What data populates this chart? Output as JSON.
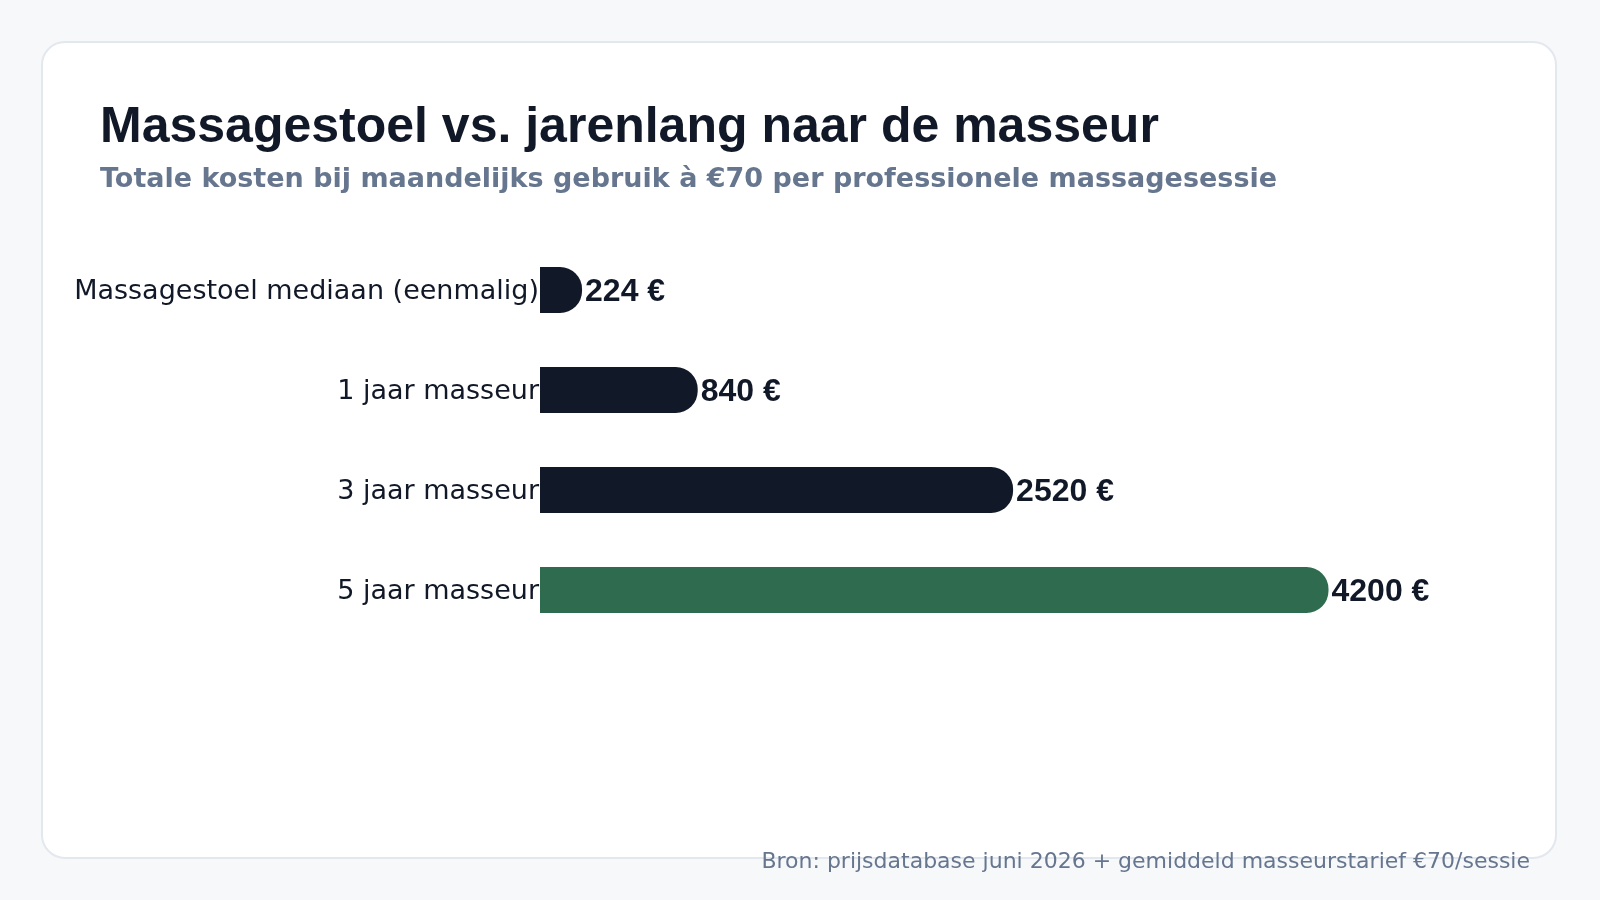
{
  "chart_data": {
    "type": "bar",
    "orientation": "horizontal",
    "title": "Massagestoel vs. jarenlang naar de masseur",
    "subtitle": "Totale kosten bij maandelijks gebruik à €70 per professionele massagesessie",
    "categories": [
      "Massagestoel mediaan (eenmalig)",
      "1 jaar masseur",
      "3 jaar masseur",
      "5 jaar masseur"
    ],
    "values": [
      224,
      840,
      2520,
      4200
    ],
    "colors": [
      "#111827",
      "#111827",
      "#111827",
      "#2e6b4f"
    ],
    "value_labels": [
      "224 €",
      "840 €",
      "2520 €",
      "4200 €"
    ],
    "grid": false,
    "legend": false,
    "tick_labels": "y",
    "annotations": [
      "Bron: prijsdatabase juni 2026 + gemiddeld masseurstarief €70/sessie"
    ]
  }
}
